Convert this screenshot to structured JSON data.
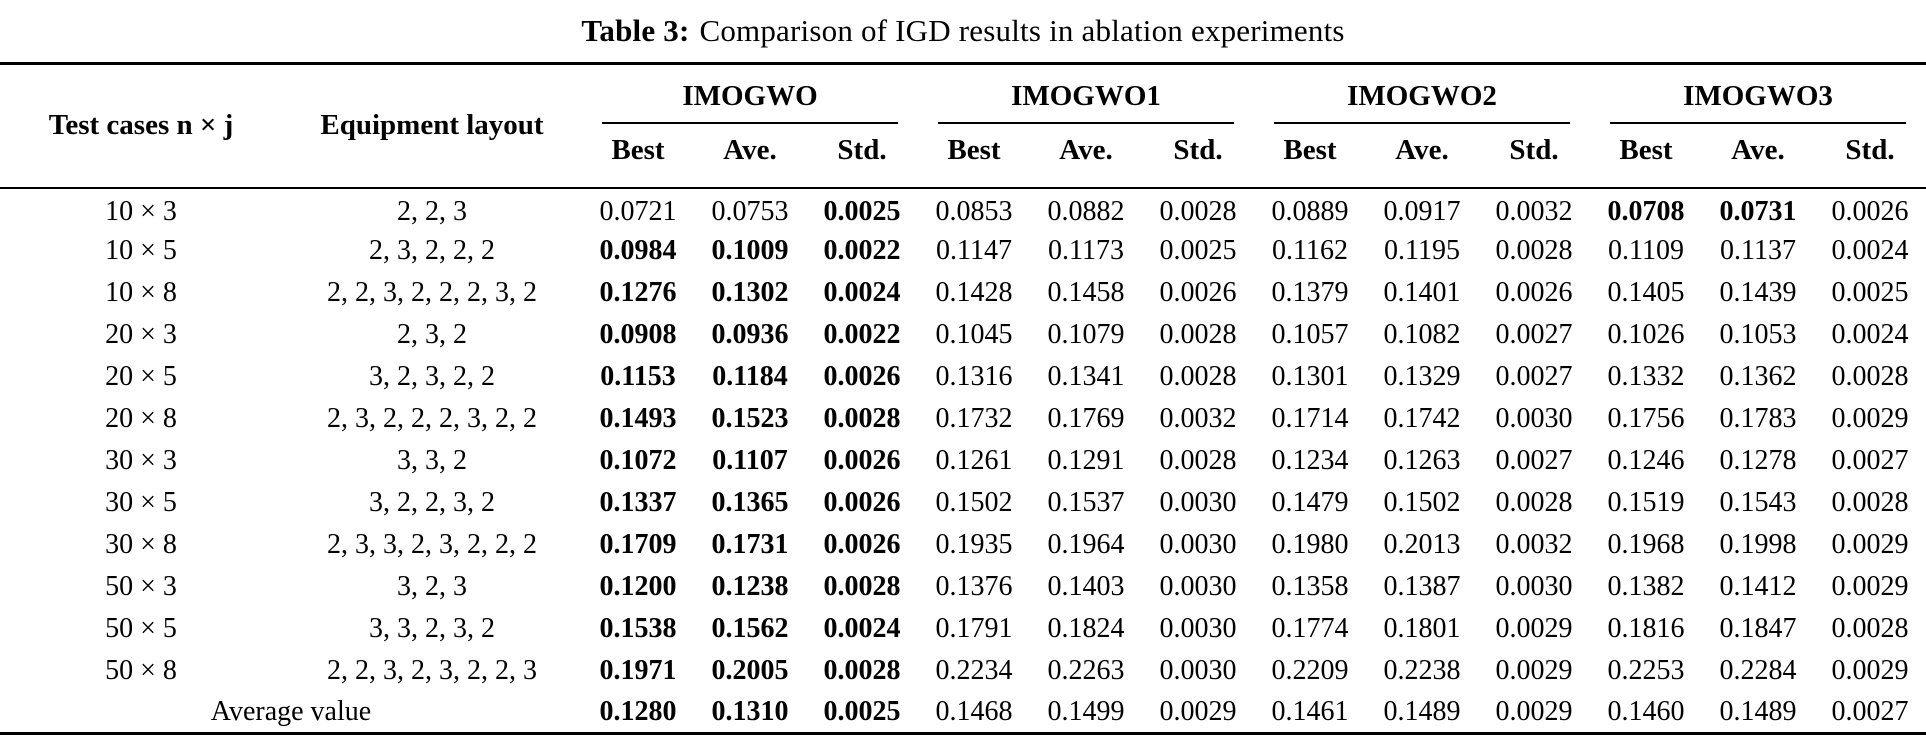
{
  "title": {
    "label": "Table 3:",
    "text": "Comparison of IGD results in ablation experiments"
  },
  "table": {
    "col1_header": "Test cases n × j",
    "col2_header": "Equipment layout",
    "groups": [
      {
        "name": "IMOGWO",
        "subcols": [
          "Best",
          "Ave.",
          "Std."
        ]
      },
      {
        "name": "IMOGWO1",
        "subcols": [
          "Best",
          "Ave.",
          "Std."
        ]
      },
      {
        "name": "IMOGWO2",
        "subcols": [
          "Best",
          "Ave.",
          "Std."
        ]
      },
      {
        "name": "IMOGWO3",
        "subcols": [
          "Best",
          "Ave.",
          "Std."
        ]
      }
    ],
    "rows": [
      {
        "test_case": "10 × 3",
        "layout": "2, 2, 3",
        "values": [
          "0.0721",
          "0.0753",
          "0.0025",
          "0.0853",
          "0.0882",
          "0.0028",
          "0.0889",
          "0.0917",
          "0.0032",
          "0.0708",
          "0.0731",
          "0.0026"
        ],
        "bold": [
          2,
          9,
          10
        ]
      },
      {
        "test_case": "10 × 5",
        "layout": "2, 3, 2, 2, 2",
        "values": [
          "0.0984",
          "0.1009",
          "0.0022",
          "0.1147",
          "0.1173",
          "0.0025",
          "0.1162",
          "0.1195",
          "0.0028",
          "0.1109",
          "0.1137",
          "0.0024"
        ],
        "bold": [
          0,
          1,
          2
        ]
      },
      {
        "test_case": "10 × 8",
        "layout": "2, 2, 3, 2, 2, 2, 3, 2",
        "values": [
          "0.1276",
          "0.1302",
          "0.0024",
          "0.1428",
          "0.1458",
          "0.0026",
          "0.1379",
          "0.1401",
          "0.0026",
          "0.1405",
          "0.1439",
          "0.0025"
        ],
        "bold": [
          0,
          1,
          2
        ]
      },
      {
        "test_case": "20 × 3",
        "layout": "2, 3, 2",
        "values": [
          "0.0908",
          "0.0936",
          "0.0022",
          "0.1045",
          "0.1079",
          "0.0028",
          "0.1057",
          "0.1082",
          "0.0027",
          "0.1026",
          "0.1053",
          "0.0024"
        ],
        "bold": [
          0,
          1,
          2
        ]
      },
      {
        "test_case": "20 × 5",
        "layout": "3, 2, 3, 2, 2",
        "values": [
          "0.1153",
          "0.1184",
          "0.0026",
          "0.1316",
          "0.1341",
          "0.0028",
          "0.1301",
          "0.1329",
          "0.0027",
          "0.1332",
          "0.1362",
          "0.0028"
        ],
        "bold": [
          0,
          1,
          2
        ]
      },
      {
        "test_case": "20 × 8",
        "layout": "2, 3, 2, 2, 2, 3, 2, 2",
        "values": [
          "0.1493",
          "0.1523",
          "0.0028",
          "0.1732",
          "0.1769",
          "0.0032",
          "0.1714",
          "0.1742",
          "0.0030",
          "0.1756",
          "0.1783",
          "0.0029"
        ],
        "bold": [
          0,
          1,
          2
        ]
      },
      {
        "test_case": "30 × 3",
        "layout": "3, 3, 2",
        "values": [
          "0.1072",
          "0.1107",
          "0.0026",
          "0.1261",
          "0.1291",
          "0.0028",
          "0.1234",
          "0.1263",
          "0.0027",
          "0.1246",
          "0.1278",
          "0.0027"
        ],
        "bold": [
          0,
          1,
          2
        ]
      },
      {
        "test_case": "30 × 5",
        "layout": "3, 2, 2, 3, 2",
        "values": [
          "0.1337",
          "0.1365",
          "0.0026",
          "0.1502",
          "0.1537",
          "0.0030",
          "0.1479",
          "0.1502",
          "0.0028",
          "0.1519",
          "0.1543",
          "0.0028"
        ],
        "bold": [
          0,
          1,
          2
        ]
      },
      {
        "test_case": "30 × 8",
        "layout": "2, 3, 3, 2, 3, 2, 2, 2",
        "values": [
          "0.1709",
          "0.1731",
          "0.0026",
          "0.1935",
          "0.1964",
          "0.0030",
          "0.1980",
          "0.2013",
          "0.0032",
          "0.1968",
          "0.1998",
          "0.0029"
        ],
        "bold": [
          0,
          1,
          2
        ]
      },
      {
        "test_case": "50 × 3",
        "layout": "3, 2, 3",
        "values": [
          "0.1200",
          "0.1238",
          "0.0028",
          "0.1376",
          "0.1403",
          "0.0030",
          "0.1358",
          "0.1387",
          "0.0030",
          "0.1382",
          "0.1412",
          "0.0029"
        ],
        "bold": [
          0,
          1,
          2
        ]
      },
      {
        "test_case": "50 × 5",
        "layout": "3, 3, 2, 3, 2",
        "values": [
          "0.1538",
          "0.1562",
          "0.0024",
          "0.1791",
          "0.1824",
          "0.0030",
          "0.1774",
          "0.1801",
          "0.0029",
          "0.1816",
          "0.1847",
          "0.0028"
        ],
        "bold": [
          0,
          1,
          2
        ]
      },
      {
        "test_case": "50 × 8",
        "layout": "2, 2, 3, 2, 3, 2, 2, 3",
        "values": [
          "0.1971",
          "0.2005",
          "0.0028",
          "0.2234",
          "0.2263",
          "0.0030",
          "0.2209",
          "0.2238",
          "0.0029",
          "0.2253",
          "0.2284",
          "0.0029"
        ],
        "bold": [
          0,
          1,
          2
        ]
      },
      {
        "label": "Average value",
        "values": [
          "0.1280",
          "0.1310",
          "0.0025",
          "0.1468",
          "0.1499",
          "0.0029",
          "0.1461",
          "0.1489",
          "0.0029",
          "0.1460",
          "0.1489",
          "0.0027"
        ],
        "bold": [
          0,
          1,
          2
        ]
      }
    ]
  }
}
